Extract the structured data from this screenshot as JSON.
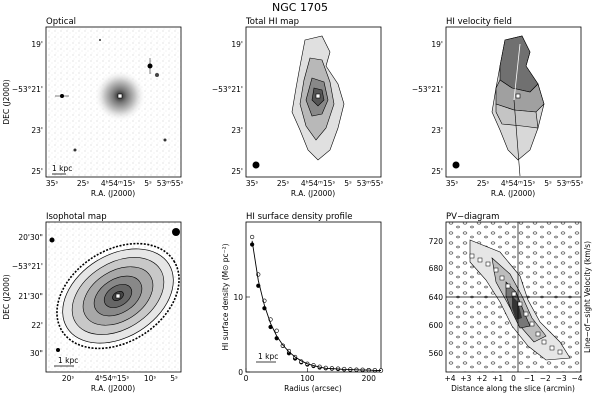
{
  "figure": {
    "title": "NGC 1705",
    "panels": [
      {
        "id": "optical",
        "title": "Optical",
        "ylabel": "DEC (J2000)",
        "xlabel": "R.A. (J2000)",
        "yticks": [
          "19'",
          "−53°21'",
          "23'",
          "25'"
        ],
        "xticks": [
          "35ˢ",
          "25ˢ",
          "4ʰ54ᵐ15ˢ",
          "5ˢ",
          "53ᵐ55ˢ"
        ],
        "scalebar": "1 kpc"
      },
      {
        "id": "total-hi",
        "title": "Total HI map",
        "xlabel": "R.A. (J2000)",
        "yticks": [
          "19'",
          "−53°21'",
          "23'",
          "25'"
        ],
        "xticks": [
          "35ˢ",
          "25ˢ",
          "4ʰ54ᵐ15ˢ",
          "5ˢ",
          "53ᵐ55ˢ"
        ]
      },
      {
        "id": "hi-velocity",
        "title": "HI velocity field",
        "xlabel": "R.A. (J2000)",
        "yticks": [
          "19'",
          "−53°21'",
          "23'",
          "25'"
        ],
        "xticks": [
          "35ˢ",
          "25ˢ",
          "4ʰ54ᵐ15ˢ",
          "5ˢ",
          "53ᵐ55ˢ"
        ]
      },
      {
        "id": "isophotal",
        "title": "Isophotal map",
        "ylabel": "DEC (J2000)",
        "xlabel": "R.A. (J2000)",
        "yticks": [
          "20'30\"",
          "−53°21'",
          "21'30\"",
          "22'",
          "30\""
        ],
        "xticks": [
          "20ˢ",
          "4ʰ54ᵐ15ˢ",
          "10ˢ",
          "5ˢ"
        ],
        "scalebar": "1 kpc"
      },
      {
        "id": "hi-profile",
        "title": "HI surface density profile",
        "ylabel": "HI surface density (M⊙ pc⁻²)",
        "xlabel": "Radius (arcsec)",
        "scalebar": "1 kpc"
      },
      {
        "id": "pv",
        "title": "PV−diagram",
        "ylabel": "Line−of−sight Velocity (km/s)",
        "xlabel": "Distance along the slice (arcmin)",
        "yticks": [
          "720",
          "680",
          "640",
          "600",
          "560"
        ],
        "xticks": [
          "+4",
          "+3",
          "+2",
          "+1",
          "0",
          "−1",
          "−2",
          "−3",
          "−4"
        ]
      }
    ]
  },
  "chart_data": {
    "type": "scatter",
    "title": "HI surface density profile",
    "xlabel": "Radius (arcsec)",
    "ylabel": "HI surface density (M⊙ pc⁻²)",
    "xlim": [
      0,
      220
    ],
    "ylim": [
      0,
      20
    ],
    "xticks": [
      0,
      100,
      200
    ],
    "yticks": [
      0,
      10
    ],
    "series": [
      {
        "marker": "filled-circle",
        "x": [
          10,
          20,
          30,
          40,
          50,
          60,
          70,
          80,
          90,
          100,
          110,
          120,
          130,
          140,
          150,
          160,
          170,
          180,
          190,
          200,
          210,
          220
        ],
        "y": [
          17.0,
          11.5,
          8.5,
          6.0,
          4.5,
          3.5,
          2.5,
          1.8,
          1.3,
          1.0,
          0.8,
          0.6,
          0.5,
          0.45,
          0.4,
          0.35,
          0.3,
          0.3,
          0.25,
          0.25,
          0.2,
          0.2
        ]
      },
      {
        "marker": "open-circle",
        "x": [
          10,
          20,
          30,
          40,
          50,
          60,
          70,
          80,
          90,
          100,
          110,
          120,
          130,
          140,
          150,
          160,
          170,
          180,
          190,
          200,
          210,
          220
        ],
        "y": [
          18.0,
          13.0,
          9.5,
          7.0,
          5.5,
          3.5,
          2.8,
          2.0,
          1.4,
          1.1,
          0.9,
          0.7,
          0.55,
          0.5,
          0.45,
          0.4,
          0.35,
          0.3,
          0.3,
          0.25,
          0.25,
          0.2
        ]
      },
      {
        "marker": "line",
        "x": [
          10,
          20,
          30,
          40,
          50,
          60,
          70,
          80,
          90,
          100,
          110,
          120,
          130,
          140,
          150,
          160,
          170,
          180,
          190,
          200,
          210,
          220
        ],
        "y": [
          17.5,
          12.2,
          8.9,
          6.5,
          4.8,
          3.6,
          2.7,
          2.0,
          1.5,
          1.1,
          0.85,
          0.65,
          0.5,
          0.45,
          0.4,
          0.35,
          0.32,
          0.3,
          0.27,
          0.25,
          0.22,
          0.2
        ]
      }
    ]
  }
}
